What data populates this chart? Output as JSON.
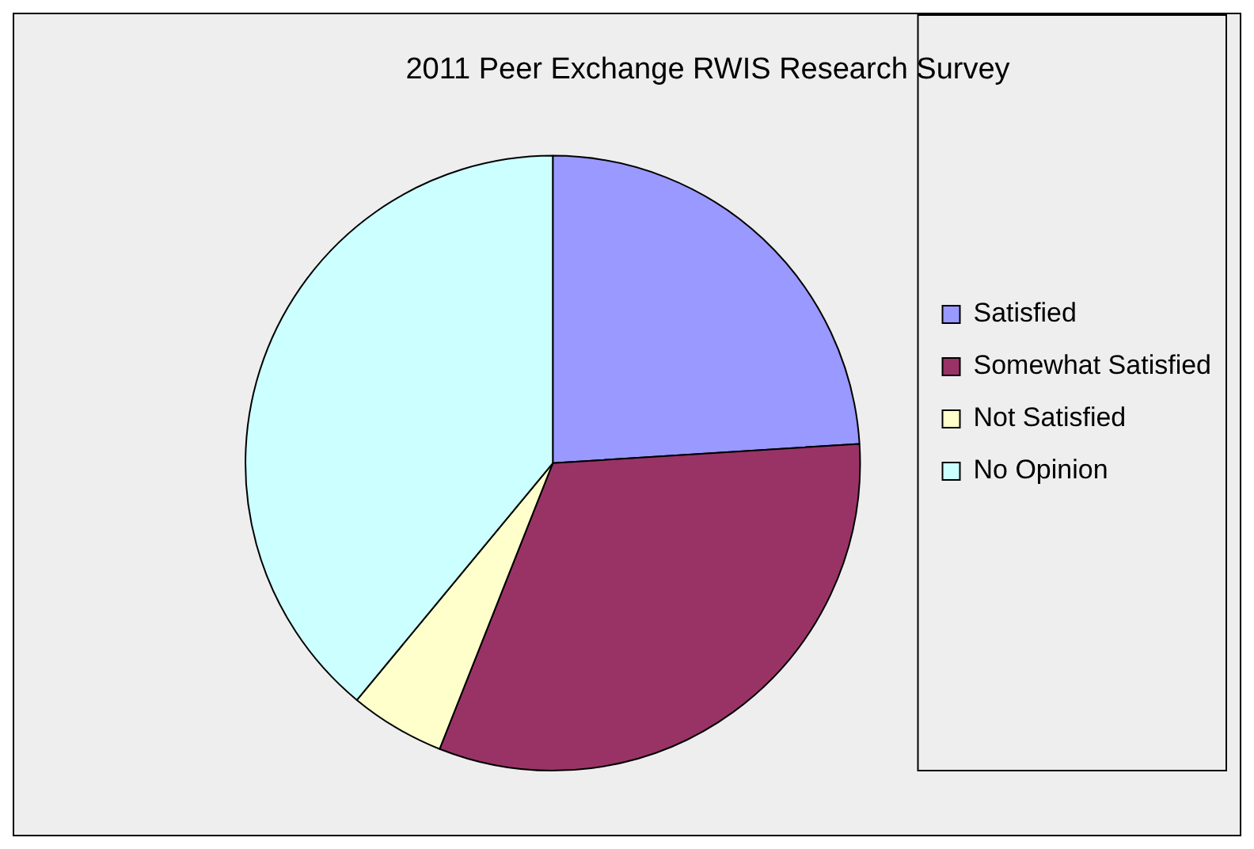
{
  "chart_data": {
    "type": "pie",
    "title": "2011 Peer Exchange RWIS Research Survey",
    "categories": [
      "Satisfied",
      "Somewhat Satisfied",
      "Not Satisfied",
      "No Opinion"
    ],
    "values": [
      24,
      32,
      5,
      39
    ],
    "colors": [
      "#9999ff",
      "#993366",
      "#ffffcc",
      "#ccffff"
    ],
    "legend": "right"
  }
}
